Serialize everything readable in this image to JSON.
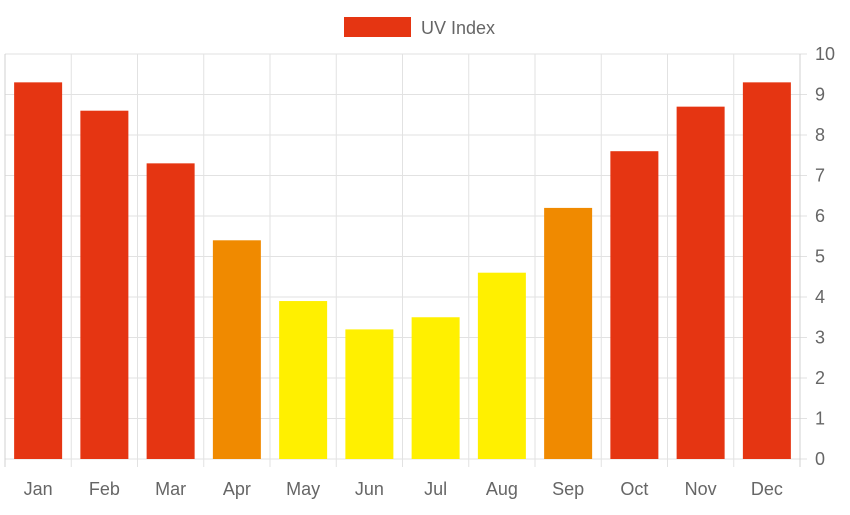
{
  "colors": {
    "high": "#e53512",
    "moderate": "#f08a00",
    "low": "#fff000",
    "grid": "#e2e2e2",
    "text": "#666666"
  },
  "chart_data": {
    "type": "bar",
    "title": "",
    "xlabel": "",
    "ylabel": "",
    "categories": [
      "Jan",
      "Feb",
      "Mar",
      "Apr",
      "May",
      "Jun",
      "Jul",
      "Aug",
      "Sep",
      "Oct",
      "Nov",
      "Dec"
    ],
    "series": [
      {
        "name": "UV Index",
        "values": [
          9.3,
          8.6,
          7.3,
          5.4,
          3.9,
          3.2,
          3.5,
          4.6,
          6.2,
          7.6,
          8.7,
          9.3
        ],
        "colors": [
          "#e53512",
          "#e53512",
          "#e53512",
          "#f08a00",
          "#fff000",
          "#fff000",
          "#fff000",
          "#fff000",
          "#f08a00",
          "#e53512",
          "#e53512",
          "#e53512"
        ]
      }
    ],
    "ylim": [
      0,
      10
    ],
    "yticks": [
      "0",
      "1",
      "2",
      "3",
      "4",
      "5",
      "6",
      "7",
      "8",
      "9",
      "10"
    ],
    "y_axis_side": "right",
    "grid": true,
    "legend": {
      "placement": "top-center",
      "label": "UV Index",
      "color": "#e53512"
    }
  }
}
